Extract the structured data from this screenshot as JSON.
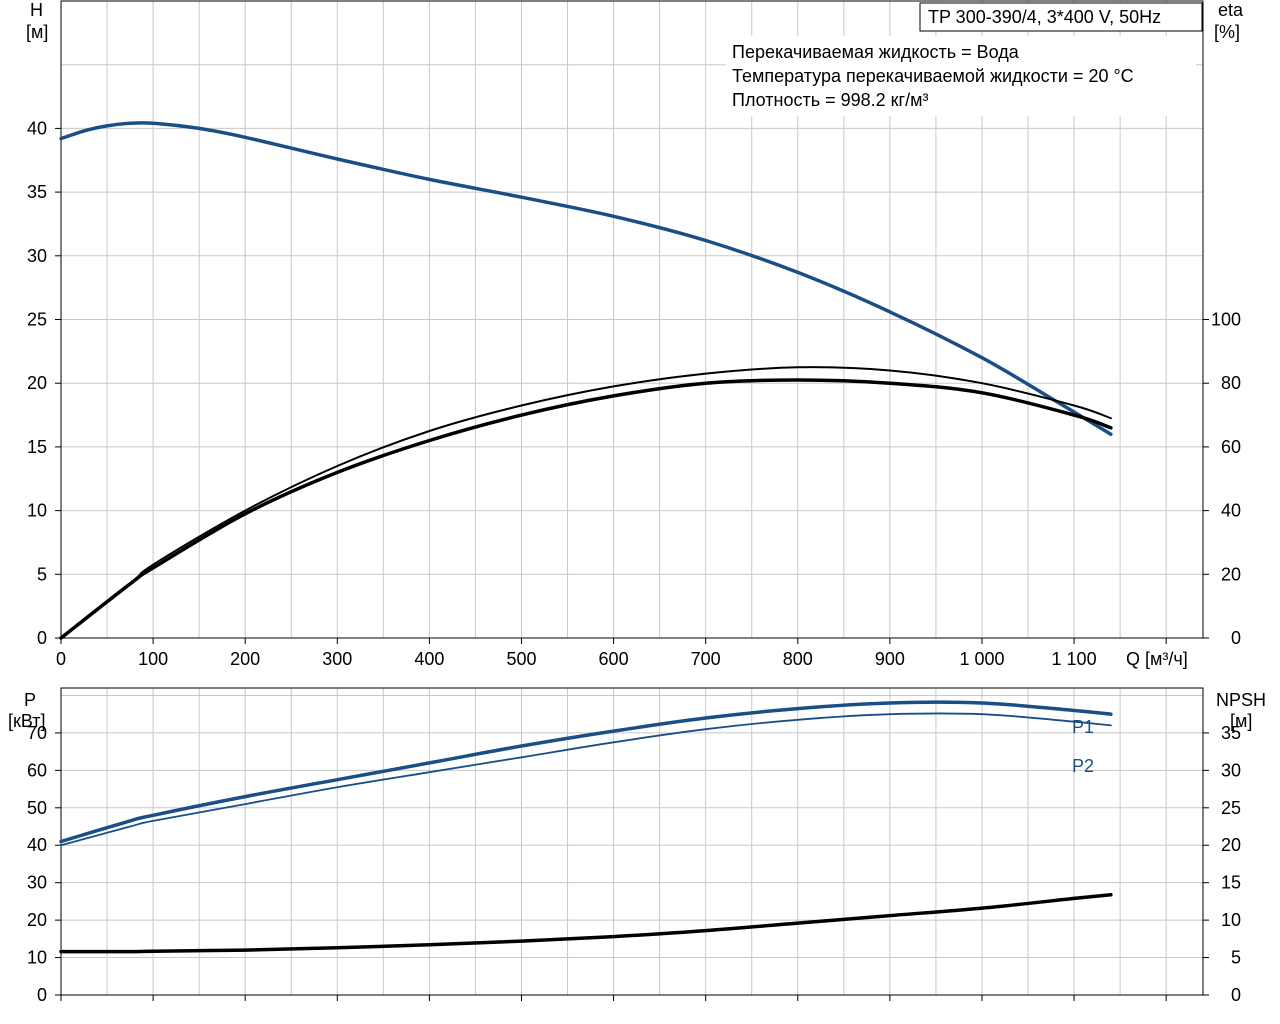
{
  "colors": {
    "blue": "#1a4f86",
    "black": "#000000",
    "grid": "#c8c8c8"
  },
  "info": {
    "title": "TP 300-390/4, 3*400 V, 50Hz",
    "lines": [
      "Перекачиваемая жидкость = Вода",
      "Температура перекачиваемой жидкости = 20 °C",
      "Плотность = 998.2 кг/м³"
    ]
  },
  "chart_data": [
    {
      "type": "line",
      "axes": {
        "x": {
          "label": "Q [м³/ч]",
          "range": [
            0,
            1240
          ],
          "ticks": [
            0,
            100,
            200,
            300,
            400,
            500,
            600,
            700,
            800,
            900,
            1000,
            1100
          ],
          "tick_labels": [
            "0",
            "100",
            "200",
            "300",
            "400",
            "500",
            "600",
            "700",
            "800",
            "900",
            "1 000",
            "1 100"
          ]
        },
        "y_left": {
          "label_top": "H",
          "label_unit": "[м]",
          "range": [
            0,
            50
          ],
          "ticks": [
            0,
            5,
            10,
            15,
            20,
            25,
            30,
            35,
            40
          ]
        },
        "y_right": {
          "label_top": "eta",
          "label_unit": "[%]",
          "range": [
            0,
            200
          ],
          "ticks": [
            0,
            20,
            40,
            60,
            80,
            100
          ]
        }
      },
      "grid": true,
      "series": [
        {
          "axis": "left",
          "style": "blue-thick",
          "x": [
            0,
            25,
            50,
            75,
            100,
            150,
            200,
            300,
            400,
            500,
            600,
            700,
            800,
            900,
            1000,
            1080,
            1140
          ],
          "y": [
            39.2,
            39.8,
            40.2,
            40.4,
            40.4,
            40.0,
            39.3,
            37.6,
            36.0,
            34.6,
            33.1,
            31.2,
            28.7,
            25.6,
            22.0,
            18.6,
            16.0
          ]
        },
        {
          "axis": "right",
          "style": "black-thin",
          "x": [
            0,
            75,
            100,
            200,
            300,
            400,
            500,
            600,
            700,
            800,
            900,
            1000,
            1100,
            1140
          ],
          "y": [
            0,
            17,
            23,
            40,
            54,
            65,
            73,
            79,
            83,
            85,
            84,
            80,
            73,
            69
          ]
        },
        {
          "axis": "right",
          "style": "black-thick",
          "x": [
            0,
            75,
            100,
            200,
            300,
            400,
            500,
            600,
            700,
            800,
            900,
            1000,
            1100,
            1140
          ],
          "y": [
            0,
            17,
            22,
            39,
            52,
            62,
            70,
            76,
            80,
            81,
            80,
            77,
            70,
            66
          ]
        }
      ]
    },
    {
      "type": "line",
      "axes": {
        "x": {
          "range": [
            0,
            1240
          ],
          "ticks": [
            0,
            100,
            200,
            300,
            400,
            500,
            600,
            700,
            800,
            900,
            1000,
            1100
          ]
        },
        "y_left": {
          "label_top": "P",
          "label_unit": "[кВт]",
          "range": [
            0,
            82
          ],
          "ticks": [
            0,
            10,
            20,
            30,
            40,
            50,
            60,
            70
          ]
        },
        "y_right": {
          "label_top": "NPSH",
          "label_unit": "[м]",
          "range": [
            0,
            41
          ],
          "ticks": [
            0,
            5,
            10,
            15,
            20,
            25,
            30,
            35
          ]
        }
      },
      "grid": true,
      "series": [
        {
          "name": "P1",
          "axis": "left",
          "style": "blue-thick",
          "x": [
            0,
            75,
            100,
            200,
            300,
            400,
            500,
            600,
            700,
            800,
            900,
            1000,
            1100,
            1140
          ],
          "y": [
            41,
            46.5,
            48,
            53,
            57.5,
            62,
            66.5,
            70.5,
            74,
            76.5,
            78,
            78,
            76,
            75
          ]
        },
        {
          "name": "P2",
          "axis": "left",
          "style": "blue-thin",
          "x": [
            0,
            75,
            100,
            200,
            300,
            400,
            500,
            600,
            700,
            800,
            900,
            1000,
            1100,
            1140
          ],
          "y": [
            40,
            45,
            46.5,
            51,
            55.5,
            59.5,
            63.5,
            67.5,
            71,
            73.5,
            75,
            75,
            73,
            72
          ]
        },
        {
          "axis": "right",
          "style": "black-thick",
          "x": [
            0,
            75,
            100,
            200,
            300,
            400,
            500,
            600,
            700,
            800,
            900,
            1000,
            1100,
            1140
          ],
          "y": [
            5.8,
            5.8,
            5.85,
            6.0,
            6.3,
            6.7,
            7.2,
            7.8,
            8.6,
            9.6,
            10.6,
            11.6,
            12.9,
            13.4
          ]
        }
      ]
    }
  ]
}
